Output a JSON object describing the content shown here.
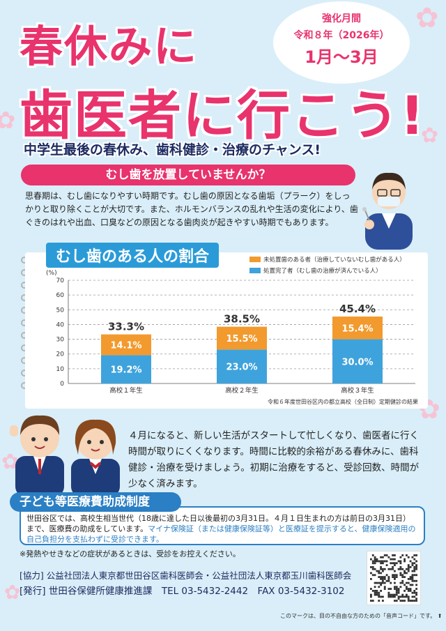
{
  "header": {
    "title_line1": "春休みに",
    "title_line2": "歯医者に行こう!",
    "period_label": "強化月間",
    "period_year": "令和８年（2026年）",
    "period_months": "1月〜3月",
    "subtitle": "中学生最後の春休み、歯科健診・治療のチャンス!"
  },
  "section1": {
    "heading": "むし歯を放置していませんか？",
    "body": "思春期は、むし歯になりやすい時期です。むし歯の原因となる歯垢（プラーク）をしっかりと取り除くことが大切です。また、ホルモンバランスの乱れや生活の変化により、歯ぐきのはれや出血、口臭などの原因となる歯肉炎が起きやすい時期でもあります。"
  },
  "chart_data": {
    "type": "bar",
    "title": "むし歯のある人の割合",
    "categories": [
      "高校１年生",
      "高校２年生",
      "高校３年生"
    ],
    "series": [
      {
        "name": "処置完了者（むし歯の治療が済んでいる人）",
        "values": [
          19.2,
          23.0,
          30.0
        ],
        "value_labels": [
          "19.2%",
          "23.0%",
          "30.0%"
        ],
        "color": "#3ea3dc"
      },
      {
        "name": "未処置歯のある者（治療していないむし歯がある人）",
        "values": [
          14.1,
          15.5,
          15.4
        ],
        "value_labels": [
          "14.1%",
          "15.5%",
          "15.4%"
        ],
        "color": "#f29a2e"
      }
    ],
    "totals": [
      "33.3%",
      "38.5%",
      "45.4%"
    ],
    "ylabel": "(%)",
    "ylim": [
      0,
      70
    ],
    "yticks": [
      "0",
      "10",
      "20",
      "30",
      "40",
      "50",
      "60",
      "70"
    ],
    "stacked": true,
    "grid": true,
    "legend_position": "top-right",
    "note": "令和６年度世田谷区内の都立高校（全日制）定期健診の結果"
  },
  "section2": {
    "body": "４月になると、新しい生活がスタートして忙しくなり、歯医者に行く時間が取りにくくなります。時間に比較的余裕がある春休みに、歯科健診・治療を受けましょう。初期に治療をすると、受診回数、時間が少なく済みます。"
  },
  "subsidy": {
    "heading": "子ども等医療費助成制度",
    "body_plain": "世田谷区では、高校生相当世代（18歳に達した日以後最初の3月31日。４月１日生まれの方は前日の3月31日）まで、医療費の助成をしています。",
    "body_blue": "マイナ保険証（または健康保険証等）と医療証を提示すると、健康保険適用の自己負担分を支払わずに受診できます。"
  },
  "note": "※発熱やせきなどの症状があるときは、受診をお控えください。",
  "footer": {
    "cooperation": "[協力] 公益社団法人東京都世田谷区歯科医師会・公益社団法人東京都玉川歯科医師会",
    "publisher": "[発行] 世田谷保健所健康推進課　TEL 03-5432-2442　FAX 03-5432-3102",
    "voice_code_note": "このマークは、目の不自由な方のための「音声コード」です。"
  },
  "colors": {
    "pink": "#e8336d",
    "navy": "#1d2b60",
    "blue": "#2b7fc4",
    "orange": "#f29a2e",
    "sky": "#3ea3dc",
    "background": "#d9eef8"
  }
}
